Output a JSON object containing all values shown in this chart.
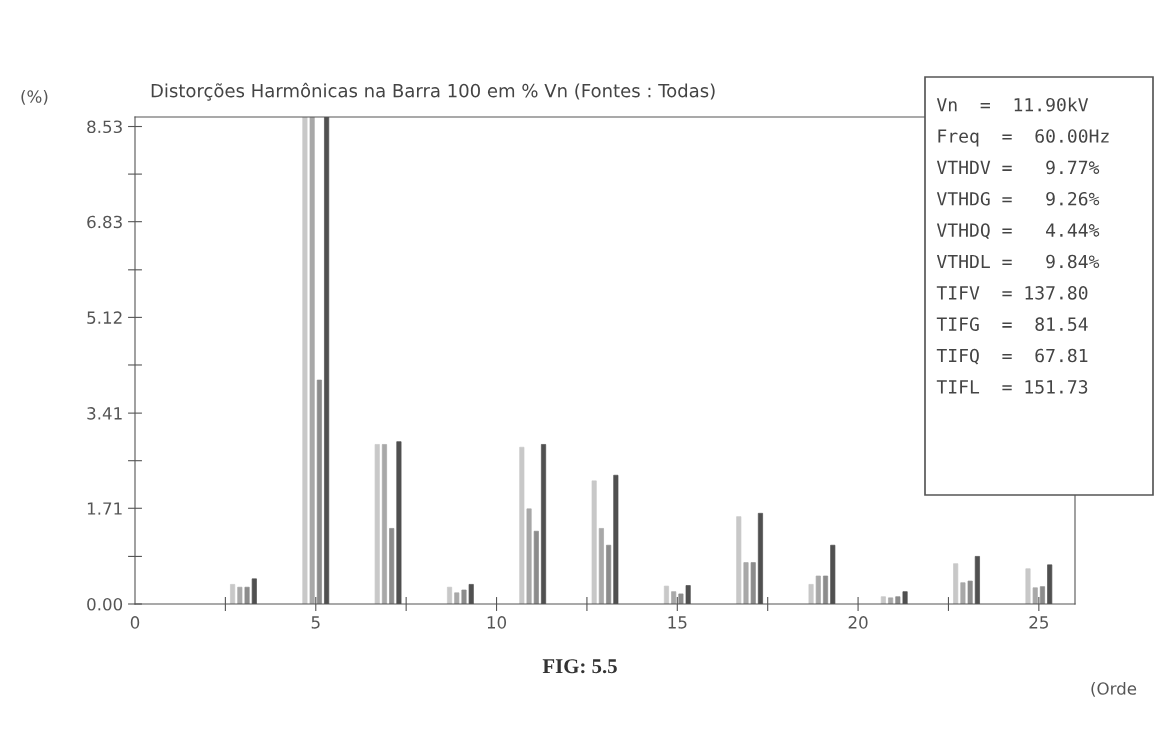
{
  "chart_data": {
    "type": "bar",
    "title": "Distorções Harmônicas na Barra 100 em % Vn (Fontes : Todas)",
    "ylabel": "(%)",
    "xlabel": "(Orde",
    "x": [
      3,
      5,
      7,
      9,
      11,
      13,
      15,
      17,
      19,
      21,
      23,
      25
    ],
    "series": [
      {
        "color": "#c8c8c8",
        "values": [
          0.35,
          8.7,
          2.85,
          0.3,
          2.8,
          2.2,
          0.32,
          1.56,
          0.35,
          0.13,
          0.72,
          0.63
        ]
      },
      {
        "color": "#a8a8a8",
        "values": [
          0.3,
          8.7,
          2.85,
          0.2,
          1.7,
          1.35,
          0.22,
          0.74,
          0.5,
          0.11,
          0.38,
          0.29
        ]
      },
      {
        "color": "#8c8c8c",
        "values": [
          0.3,
          4.0,
          1.35,
          0.25,
          1.3,
          1.05,
          0.18,
          0.74,
          0.5,
          0.13,
          0.41,
          0.31
        ]
      },
      {
        "color": "#505050",
        "values": [
          0.45,
          8.7,
          2.9,
          0.35,
          2.85,
          2.3,
          0.33,
          1.62,
          1.05,
          0.22,
          0.85,
          0.7
        ]
      }
    ],
    "xlim": [
      0,
      26
    ],
    "ylim": [
      0,
      8.7
    ],
    "xticks": [
      0,
      {
        "value": 2.5,
        "label": null
      },
      5,
      {
        "value": 7.5,
        "label": null
      },
      10,
      {
        "value": 12.5,
        "label": null
      },
      15,
      {
        "value": 17.5,
        "label": null
      },
      20,
      {
        "value": 22.5,
        "label": null
      },
      25
    ],
    "yticks": [
      {
        "value": 0,
        "label": "0.00"
      },
      {
        "value": 0.85,
        "label": null
      },
      {
        "value": 1.71,
        "label": "1.71"
      },
      {
        "value": 2.56,
        "label": null
      },
      {
        "value": 3.41,
        "label": "3.41"
      },
      {
        "value": 4.27,
        "label": null
      },
      {
        "value": 5.12,
        "label": "5.12"
      },
      {
        "value": 5.97,
        "label": null
      },
      {
        "value": 6.83,
        "label": "6.83"
      },
      {
        "value": 7.68,
        "label": null
      },
      {
        "value": 8.53,
        "label": "8.53"
      }
    ],
    "grid": false,
    "annotations": [
      "FIG: 5.5",
      "Vn  =  11.90kV",
      "Freq  =  60.00Hz",
      "VTHDV =   9.77%",
      "VTHDG =   9.26%",
      "VTHDQ =   4.44%",
      "VTHDL =   9.84%",
      "TIFV  = 137.80",
      "TIFG  =  81.54",
      "TIFQ  =  67.81",
      "TIFL  = 151.73"
    ]
  }
}
